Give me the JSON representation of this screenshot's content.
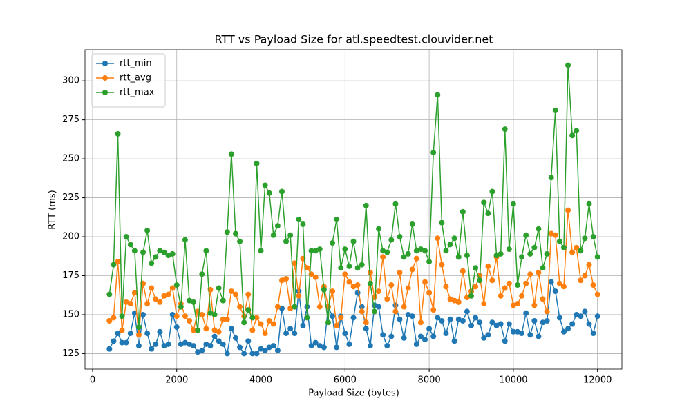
{
  "chart_data": {
    "type": "line",
    "title": "RTT vs Payload Size for atl.speedtest.clouvider.net",
    "xlabel": "Payload Size (bytes)",
    "ylabel": "RTT (ms)",
    "x": [
      400,
      500,
      600,
      700,
      800,
      900,
      1000,
      1100,
      1200,
      1300,
      1400,
      1500,
      1600,
      1700,
      1800,
      1900,
      2000,
      2100,
      2200,
      2300,
      2400,
      2500,
      2600,
      2700,
      2800,
      2900,
      3000,
      3100,
      3200,
      3300,
      3400,
      3500,
      3600,
      3700,
      3800,
      3900,
      4000,
      4100,
      4200,
      4300,
      4400,
      4500,
      4600,
      4700,
      4800,
      4900,
      5000,
      5100,
      5200,
      5300,
      5400,
      5500,
      5600,
      5700,
      5800,
      5900,
      6000,
      6100,
      6200,
      6300,
      6400,
      6500,
      6600,
      6700,
      6800,
      6900,
      7000,
      7100,
      7200,
      7300,
      7400,
      7500,
      7600,
      7700,
      7800,
      7900,
      8000,
      8100,
      8200,
      8300,
      8400,
      8500,
      8600,
      8700,
      8800,
      8900,
      9000,
      9100,
      9200,
      9300,
      9400,
      9500,
      9600,
      9700,
      9800,
      9900,
      10000,
      10100,
      10200,
      10300,
      10400,
      10500,
      10600,
      10700,
      10800,
      10900,
      11000,
      11100,
      11200,
      11300,
      11400,
      11500,
      11600,
      11700,
      11800,
      11900,
      12000
    ],
    "series": [
      {
        "name": "rtt_min",
        "color": "#1f77b4",
        "values": [
          128,
          133,
          138,
          132,
          132,
          138,
          151,
          130,
          150,
          138,
          128,
          131,
          139,
          130,
          131,
          150,
          142,
          131,
          132,
          131,
          130,
          126,
          127,
          131,
          130,
          136,
          133,
          131,
          125,
          141,
          135,
          129,
          125,
          133,
          125,
          125,
          128,
          127,
          129,
          130,
          127,
          154,
          138,
          141,
          138,
          165,
          143,
          155,
          130,
          132,
          130,
          129,
          155,
          149,
          129,
          149,
          138,
          131,
          148,
          164,
          155,
          141,
          130,
          156,
          155,
          137,
          130,
          136,
          156,
          147,
          135,
          150,
          149,
          131,
          136,
          134,
          141,
          136,
          148,
          146,
          138,
          147,
          133,
          147,
          146,
          152,
          143,
          148,
          145,
          135,
          137,
          145,
          143,
          144,
          133,
          144,
          139,
          139,
          138,
          151,
          137,
          146,
          136,
          145,
          146,
          171,
          165,
          148,
          139,
          141,
          144,
          150,
          149,
          152,
          144,
          138,
          149
        ]
      },
      {
        "name": "rtt_avg",
        "color": "#ff7f0e",
        "values": [
          146,
          148,
          184,
          140,
          158,
          157,
          164,
          137,
          170,
          157,
          167,
          160,
          158,
          162,
          163,
          167,
          149,
          157,
          149,
          146,
          140,
          152,
          150,
          141,
          166,
          140,
          139,
          147,
          147,
          165,
          163,
          155,
          149,
          163,
          140,
          148,
          144,
          138,
          146,
          144,
          155,
          172,
          173,
          154,
          183,
          162,
          186,
          180,
          176,
          174,
          155,
          168,
          155,
          165,
          143,
          148,
          176,
          171,
          168,
          169,
          152,
          145,
          177,
          161,
          165,
          187,
          160,
          169,
          152,
          177,
          155,
          167,
          179,
          186,
          145,
          171,
          164,
          153,
          199,
          182,
          168,
          160,
          159,
          158,
          178,
          161,
          165,
          168,
          175,
          157,
          181,
          172,
          187,
          162,
          167,
          170,
          156,
          157,
          162,
          170,
          176,
          156,
          177,
          160,
          152,
          202,
          201,
          170,
          168,
          217,
          190,
          193,
          172,
          175,
          182,
          169,
          163
        ]
      },
      {
        "name": "rtt_max",
        "color": "#2ca02c",
        "values": [
          163,
          182,
          266,
          149,
          200,
          195,
          191,
          142,
          190,
          204,
          183,
          187,
          191,
          190,
          188,
          189,
          169,
          155,
          198,
          159,
          158,
          140,
          176,
          191,
          151,
          150,
          167,
          159,
          203,
          253,
          202,
          197,
          145,
          153,
          148,
          247,
          191,
          233,
          228,
          201,
          207,
          229,
          197,
          201,
          155,
          211,
          208,
          148,
          191,
          191,
          192,
          166,
          145,
          196,
          211,
          180,
          192,
          181,
          197,
          180,
          182,
          220,
          170,
          152,
          205,
          191,
          190,
          198,
          221,
          200,
          187,
          189,
          208,
          191,
          192,
          191,
          184,
          254,
          291,
          209,
          191,
          195,
          199,
          187,
          216,
          188,
          162,
          180,
          172,
          222,
          215,
          229,
          188,
          189,
          269,
          192,
          221,
          169,
          187,
          201,
          189,
          193,
          205,
          180,
          189,
          238,
          281,
          197,
          193,
          310,
          265,
          268,
          191,
          199,
          221,
          200,
          187
        ]
      }
    ],
    "xlim": [
      -180,
      12580
    ],
    "ylim": [
      115,
      320
    ],
    "xticks": [
      0,
      2000,
      4000,
      6000,
      8000,
      10000,
      12000
    ],
    "yticks": [
      125,
      150,
      175,
      200,
      225,
      250,
      275,
      300
    ],
    "grid": true,
    "legend": "upper left"
  }
}
